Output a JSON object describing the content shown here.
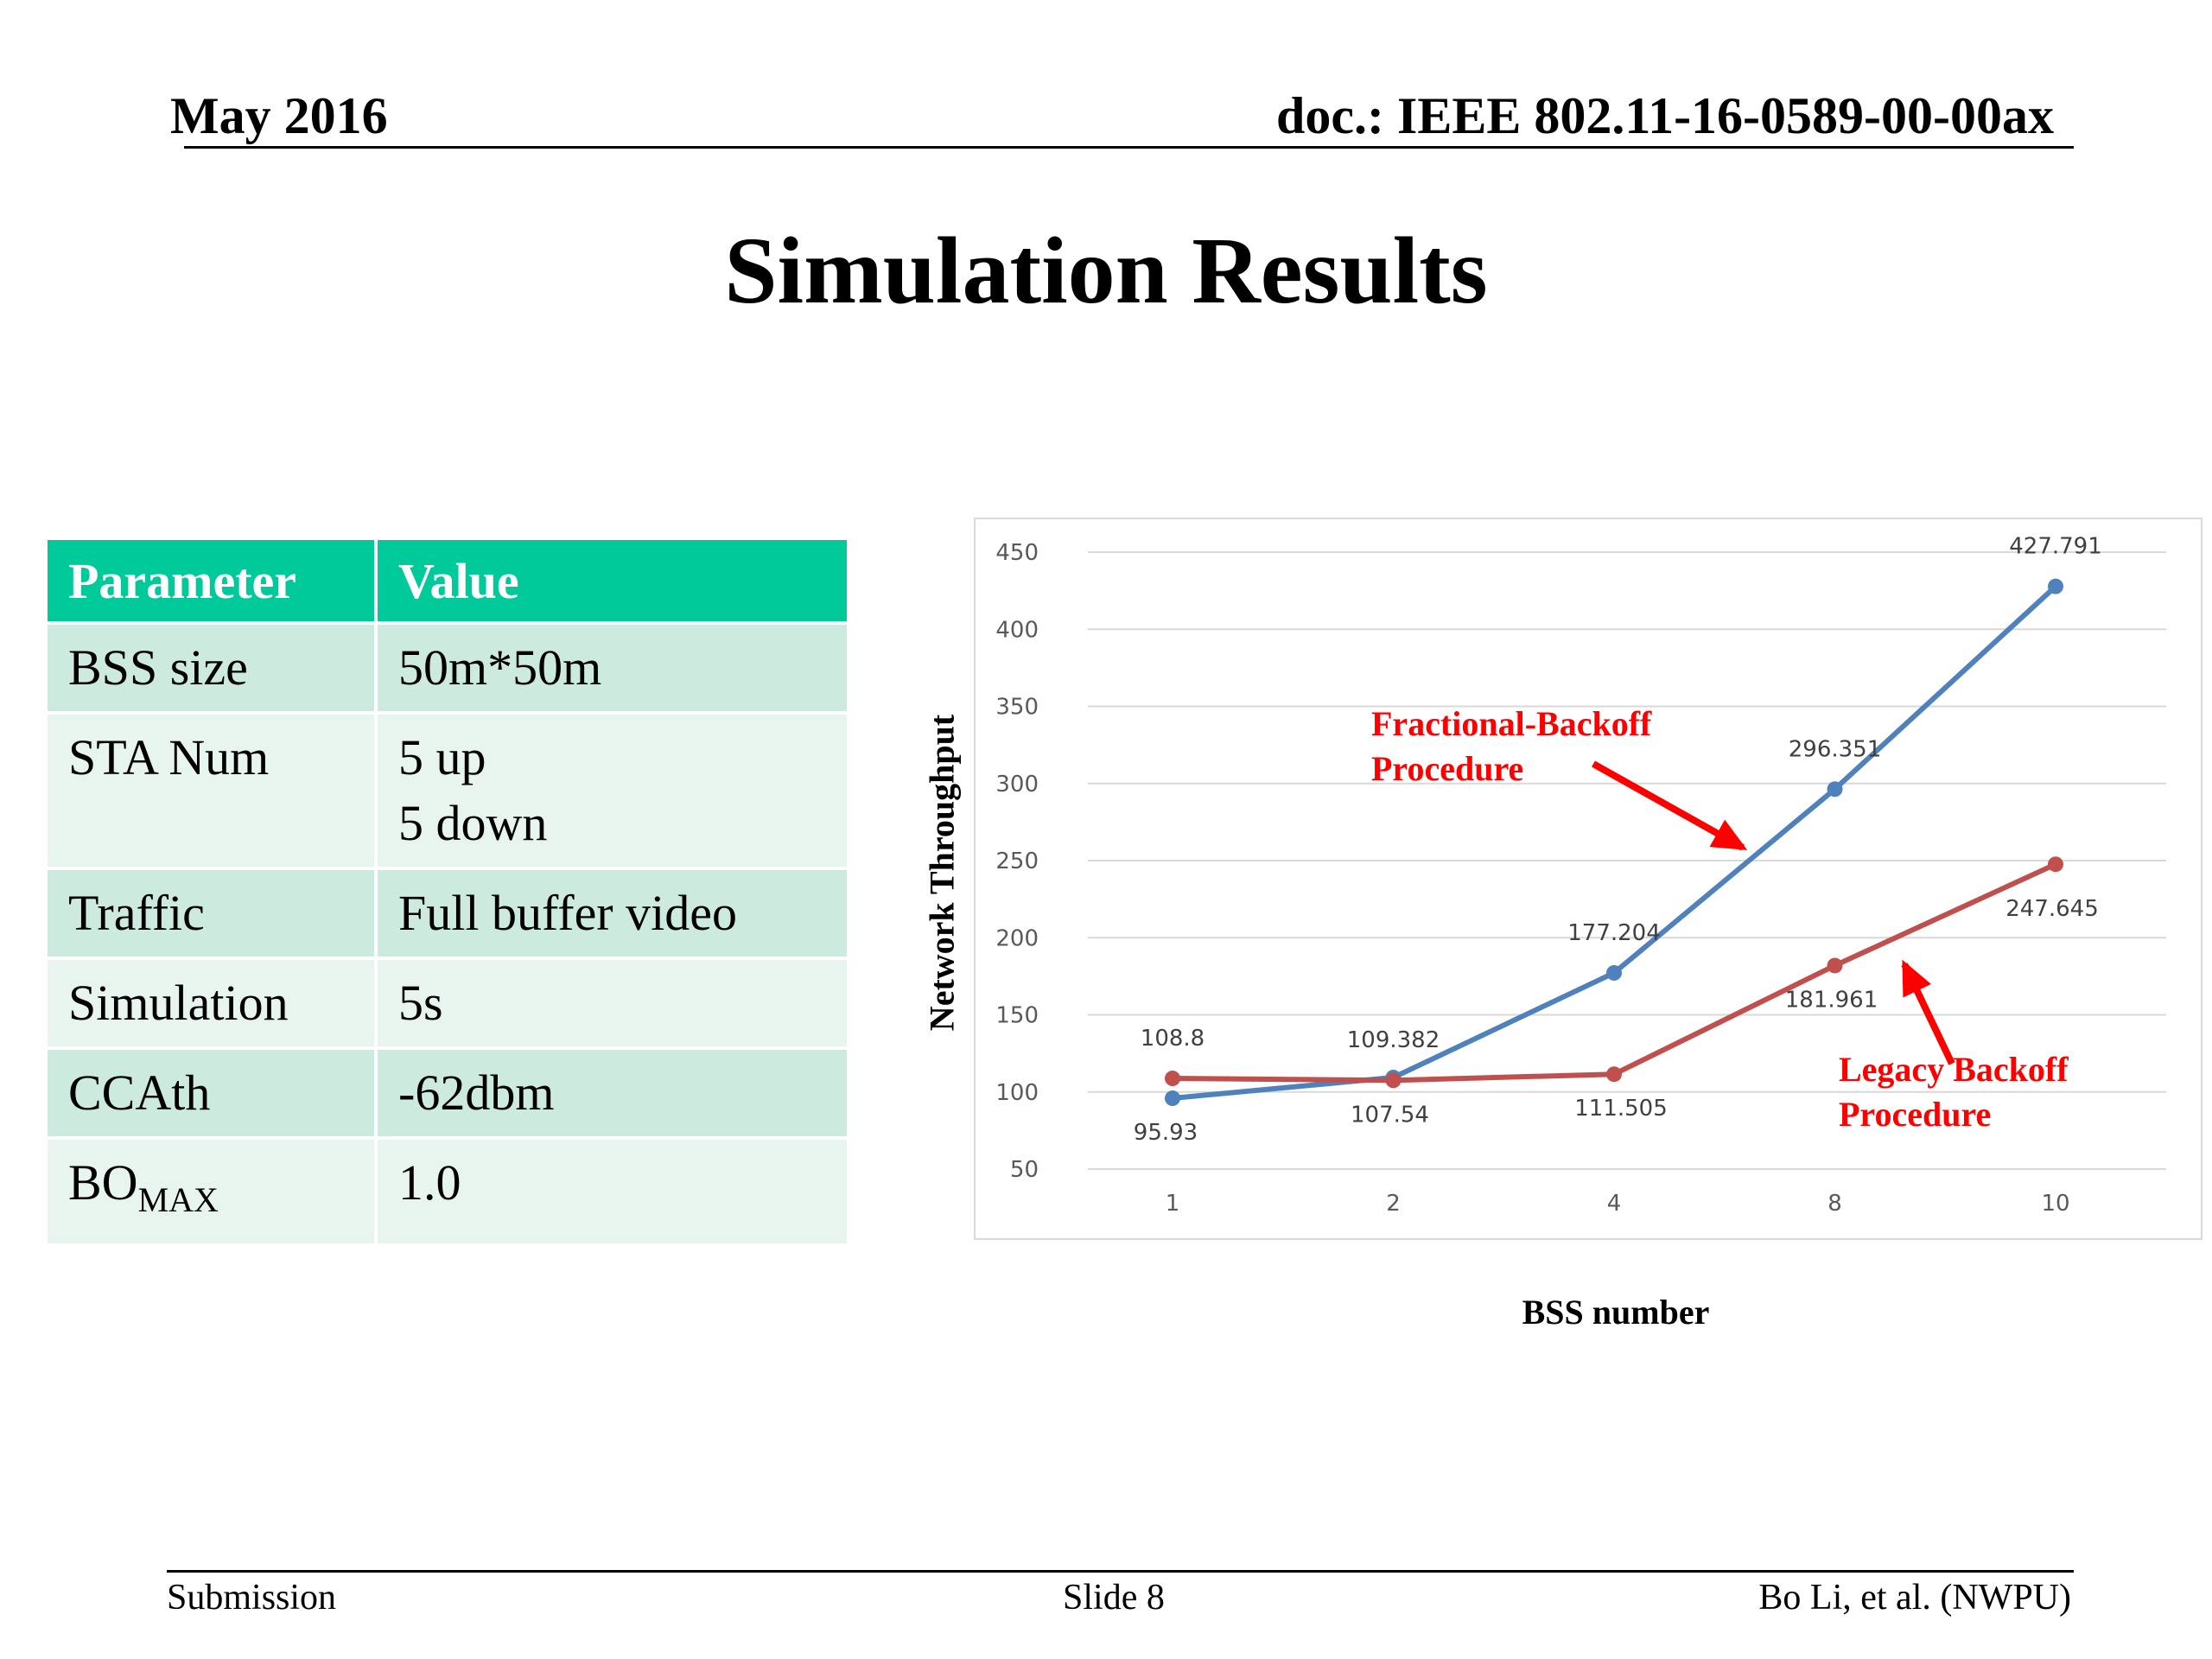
{
  "header": {
    "date": "May 2016",
    "doc": "doc.: IEEE 802.11-16-0589-00-00ax"
  },
  "title": "Simulation Results",
  "table": {
    "headers": [
      "Parameter",
      "Value"
    ],
    "rows": [
      {
        "param": "BSS size",
        "value": [
          "50m*50m"
        ]
      },
      {
        "param": "STA Num",
        "value": [
          "5 up",
          "5 down"
        ]
      },
      {
        "param": "Traffic",
        "value": [
          "Full buffer video"
        ]
      },
      {
        "param": "Simulation",
        "value": [
          "5s"
        ]
      },
      {
        "param": "CCAth",
        "value": [
          "-62dbm"
        ]
      },
      {
        "param_base": "BO",
        "param_sub": "MAX",
        "value": [
          "1.0"
        ]
      }
    ]
  },
  "chart_data": {
    "type": "line",
    "xlabel": "BSS number",
    "ylabel": "Network Throughput",
    "categories": [
      "1",
      "2",
      "4",
      "8",
      "10"
    ],
    "ylim": [
      50,
      450
    ],
    "yticks": [
      50,
      100,
      150,
      200,
      250,
      300,
      350,
      400,
      450
    ],
    "grid": true,
    "series": [
      {
        "color": "#4f81bd",
        "values": [
          95.93,
          109.382,
          177.204,
          296.351,
          427.791
        ],
        "labels": [
          "95.93",
          "109.382",
          "177.204",
          "296.351",
          "427.791"
        ]
      },
      {
        "color": "#c0504d",
        "values": [
          108.8,
          107.54,
          111.505,
          181.961,
          247.645
        ],
        "labels": [
          "108.8",
          "107.54",
          "111.505",
          "181.961",
          "247.645"
        ]
      }
    ],
    "annotations": [
      {
        "lines": [
          "Fractional-Backoff",
          "Procedure"
        ],
        "color": "#ff0000"
      },
      {
        "lines": [
          "Legacy Backoff",
          "Procedure"
        ],
        "color": "#ff0000"
      }
    ]
  },
  "footer": {
    "left": "Submission",
    "center": "Slide 8",
    "right": "Bo Li, et al. (NWPU)"
  }
}
